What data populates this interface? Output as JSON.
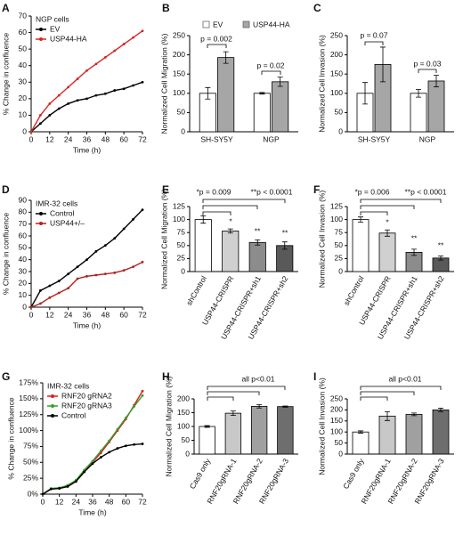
{
  "chart_data": [
    {
      "type": "line",
      "panel": "A",
      "title": "NGP cells",
      "ylabel": "% Change in confluence",
      "xlabel": "Time (h)",
      "x": [
        0,
        6,
        12,
        18,
        24,
        30,
        36,
        42,
        48,
        54,
        60,
        66,
        72
      ],
      "xlim": [
        0,
        72
      ],
      "xticks": [
        0,
        12,
        24,
        36,
        48,
        60,
        72
      ],
      "ylim": [
        0,
        70
      ],
      "yticks": [
        0,
        10,
        20,
        30,
        40,
        50,
        60,
        70
      ],
      "series": [
        {
          "name": "EV",
          "color": "#000000",
          "values": [
            0,
            5,
            10,
            14,
            17,
            19,
            20,
            22,
            23,
            25,
            26,
            28,
            30
          ]
        },
        {
          "name": "USP44-HA",
          "color": "#d62728",
          "values": [
            0,
            10,
            17,
            22,
            27,
            32,
            37,
            41,
            45,
            49,
            53,
            57,
            61
          ]
        }
      ]
    },
    {
      "type": "bar",
      "panel": "B",
      "ylabel": "Normalized Cell Migration (%)",
      "categories": [
        "SH-SY5Y",
        "NGP"
      ],
      "ylim": [
        0,
        250
      ],
      "yticks": [
        0,
        50,
        100,
        150,
        200,
        250
      ],
      "series": [
        {
          "name": "EV",
          "color": "#ffffff",
          "values": [
            100,
            100
          ],
          "errors": [
            15,
            2
          ]
        },
        {
          "name": "USP44-HA",
          "color": "#a6a6a6",
          "values": [
            193,
            130
          ],
          "errors": [
            15,
            12
          ]
        }
      ],
      "annotations": [
        "p = 0.002",
        "p = 0.02"
      ]
    },
    {
      "type": "bar",
      "panel": "C",
      "ylabel": "Normalized Cell Invasion (%)",
      "categories": [
        "SH-SY5Y",
        "NGP"
      ],
      "ylim": [
        0,
        250
      ],
      "yticks": [
        0,
        50,
        100,
        150,
        200,
        250
      ],
      "series": [
        {
          "color": "#ffffff",
          "values": [
            100,
            100
          ],
          "errors": [
            28,
            10
          ]
        },
        {
          "color": "#a6a6a6",
          "values": [
            175,
            132
          ],
          "errors": [
            45,
            15
          ]
        }
      ],
      "annotations": [
        "p = 0.07",
        "p = 0.03"
      ]
    },
    {
      "type": "line",
      "panel": "D",
      "title": "IMR-32 cells",
      "ylabel": "% Change in confluence",
      "xlabel": "Time (h)",
      "x": [
        0,
        6,
        12,
        18,
        24,
        30,
        36,
        42,
        48,
        54,
        60,
        66,
        72
      ],
      "xlim": [
        0,
        72
      ],
      "xticks": [
        0,
        12,
        24,
        36,
        48,
        60,
        72
      ],
      "ylim": [
        0,
        90
      ],
      "yticks": [
        0,
        10,
        20,
        30,
        40,
        50,
        60,
        70,
        80,
        90
      ],
      "series": [
        {
          "name": "Control",
          "color": "#000000",
          "values": [
            0,
            14,
            18,
            22,
            28,
            34,
            40,
            47,
            52,
            58,
            66,
            74,
            82
          ]
        },
        {
          "name": "USP44+/–",
          "color": "#b22222",
          "values": [
            0,
            3,
            8,
            12,
            16,
            24,
            26,
            27,
            28,
            29,
            31,
            34,
            38
          ]
        }
      ]
    },
    {
      "type": "bar",
      "panel": "E",
      "ylabel": "Normalized Cell Migration (%)",
      "categories": [
        "shControl",
        "USP44-CRISPR",
        "USP44-CRISPR+sh1",
        "USP44-CRISPR+sh2"
      ],
      "values": [
        100,
        78,
        56,
        50
      ],
      "errors": [
        7,
        4,
        5,
        7
      ],
      "colors": [
        "#ffffff",
        "#d0d0d0",
        "#8c8c8c",
        "#595959"
      ],
      "ylim": [
        0,
        125
      ],
      "yticks": [
        0,
        25,
        50,
        75,
        100,
        125
      ],
      "annotations": [
        "*p = 0.009",
        "**p < 0.0001",
        "*",
        "**",
        "**"
      ]
    },
    {
      "type": "bar",
      "panel": "F",
      "ylabel": "Normalized Cell Invasion (%)",
      "categories": [
        "shControl",
        "USP44-CRISPR",
        "USP44-CRISPR+sh1",
        "USP44-CRISPR+sh2"
      ],
      "values": [
        100,
        74,
        37,
        26
      ],
      "errors": [
        5,
        6,
        6,
        4
      ],
      "colors": [
        "#ffffff",
        "#d0d0d0",
        "#8c8c8c",
        "#595959"
      ],
      "ylim": [
        0,
        125
      ],
      "yticks": [
        0,
        25,
        50,
        75,
        100,
        125
      ],
      "annotations": [
        "*p = 0.006",
        "**p < 0.0001",
        "*",
        "**",
        "**"
      ]
    },
    {
      "type": "line",
      "panel": "G",
      "title": "IMR-32 cells",
      "ylabel": "% Change in confluence",
      "xlabel": "Time (h)",
      "x": [
        0,
        6,
        12,
        18,
        24,
        30,
        36,
        42,
        48,
        54,
        60,
        66,
        72
      ],
      "xlim": [
        0,
        72
      ],
      "xticks": [
        0,
        12,
        24,
        36,
        48,
        60,
        72
      ],
      "ylim": [
        0,
        175
      ],
      "yticks": [
        {
          "value": 0,
          "label": "0%"
        },
        {
          "value": 25,
          "label": "25%"
        },
        {
          "value": 50,
          "label": "50%"
        },
        {
          "value": 75,
          "label": "75%"
        },
        {
          "value": 100,
          "label": "100%"
        },
        {
          "value": 125,
          "label": "125%"
        },
        {
          "value": 150,
          "label": "150%"
        },
        {
          "value": 175,
          "label": "175%"
        }
      ],
      "series": [
        {
          "name": "RNF20 gRNA2",
          "color": "#e31a1c",
          "values": [
            0,
            8,
            9,
            12,
            20,
            35,
            50,
            65,
            82,
            100,
            118,
            140,
            162
          ]
        },
        {
          "name": "RNF20 gRNA3",
          "color": "#33a02c",
          "values": [
            0,
            9,
            10,
            14,
            22,
            38,
            52,
            68,
            84,
            102,
            120,
            138,
            155
          ]
        },
        {
          "name": "Control",
          "color": "#000000",
          "values": [
            0,
            8,
            9,
            12,
            20,
            35,
            48,
            58,
            66,
            72,
            76,
            78,
            79
          ]
        }
      ]
    },
    {
      "type": "bar",
      "panel": "H",
      "ylabel": "Normalized Cell Migration (%)",
      "categories": [
        "Cas9 only",
        "RNF20gRNA-1",
        "RNF20gRNA-2",
        "RNF20gRNA-3"
      ],
      "values": [
        100,
        148,
        173,
        172
      ],
      "errors": [
        3,
        8,
        6,
        2
      ],
      "colors": [
        "#ffffff",
        "#c8c8c8",
        "#a0a0a0",
        "#6e6e6e"
      ],
      "ylim": [
        0,
        200
      ],
      "yticks": [
        0,
        50,
        100,
        150,
        200
      ],
      "annotations": [
        "all p<0.01"
      ]
    },
    {
      "type": "bar",
      "panel": "I",
      "ylabel": "Normalized Cell Invasion (%)",
      "categories": [
        "Cas9 only",
        "RNF20gRNA-1",
        "RNF20gRNA-2",
        "RNF20gRNA-3"
      ],
      "values": [
        100,
        172,
        180,
        200
      ],
      "errors": [
        5,
        20,
        6,
        8
      ],
      "colors": [
        "#ffffff",
        "#c8c8c8",
        "#a0a0a0",
        "#6e6e6e"
      ],
      "ylim": [
        0,
        250
      ],
      "yticks": [
        0,
        50,
        100,
        150,
        200,
        250
      ],
      "annotations": [
        "all p<0.01"
      ]
    }
  ]
}
